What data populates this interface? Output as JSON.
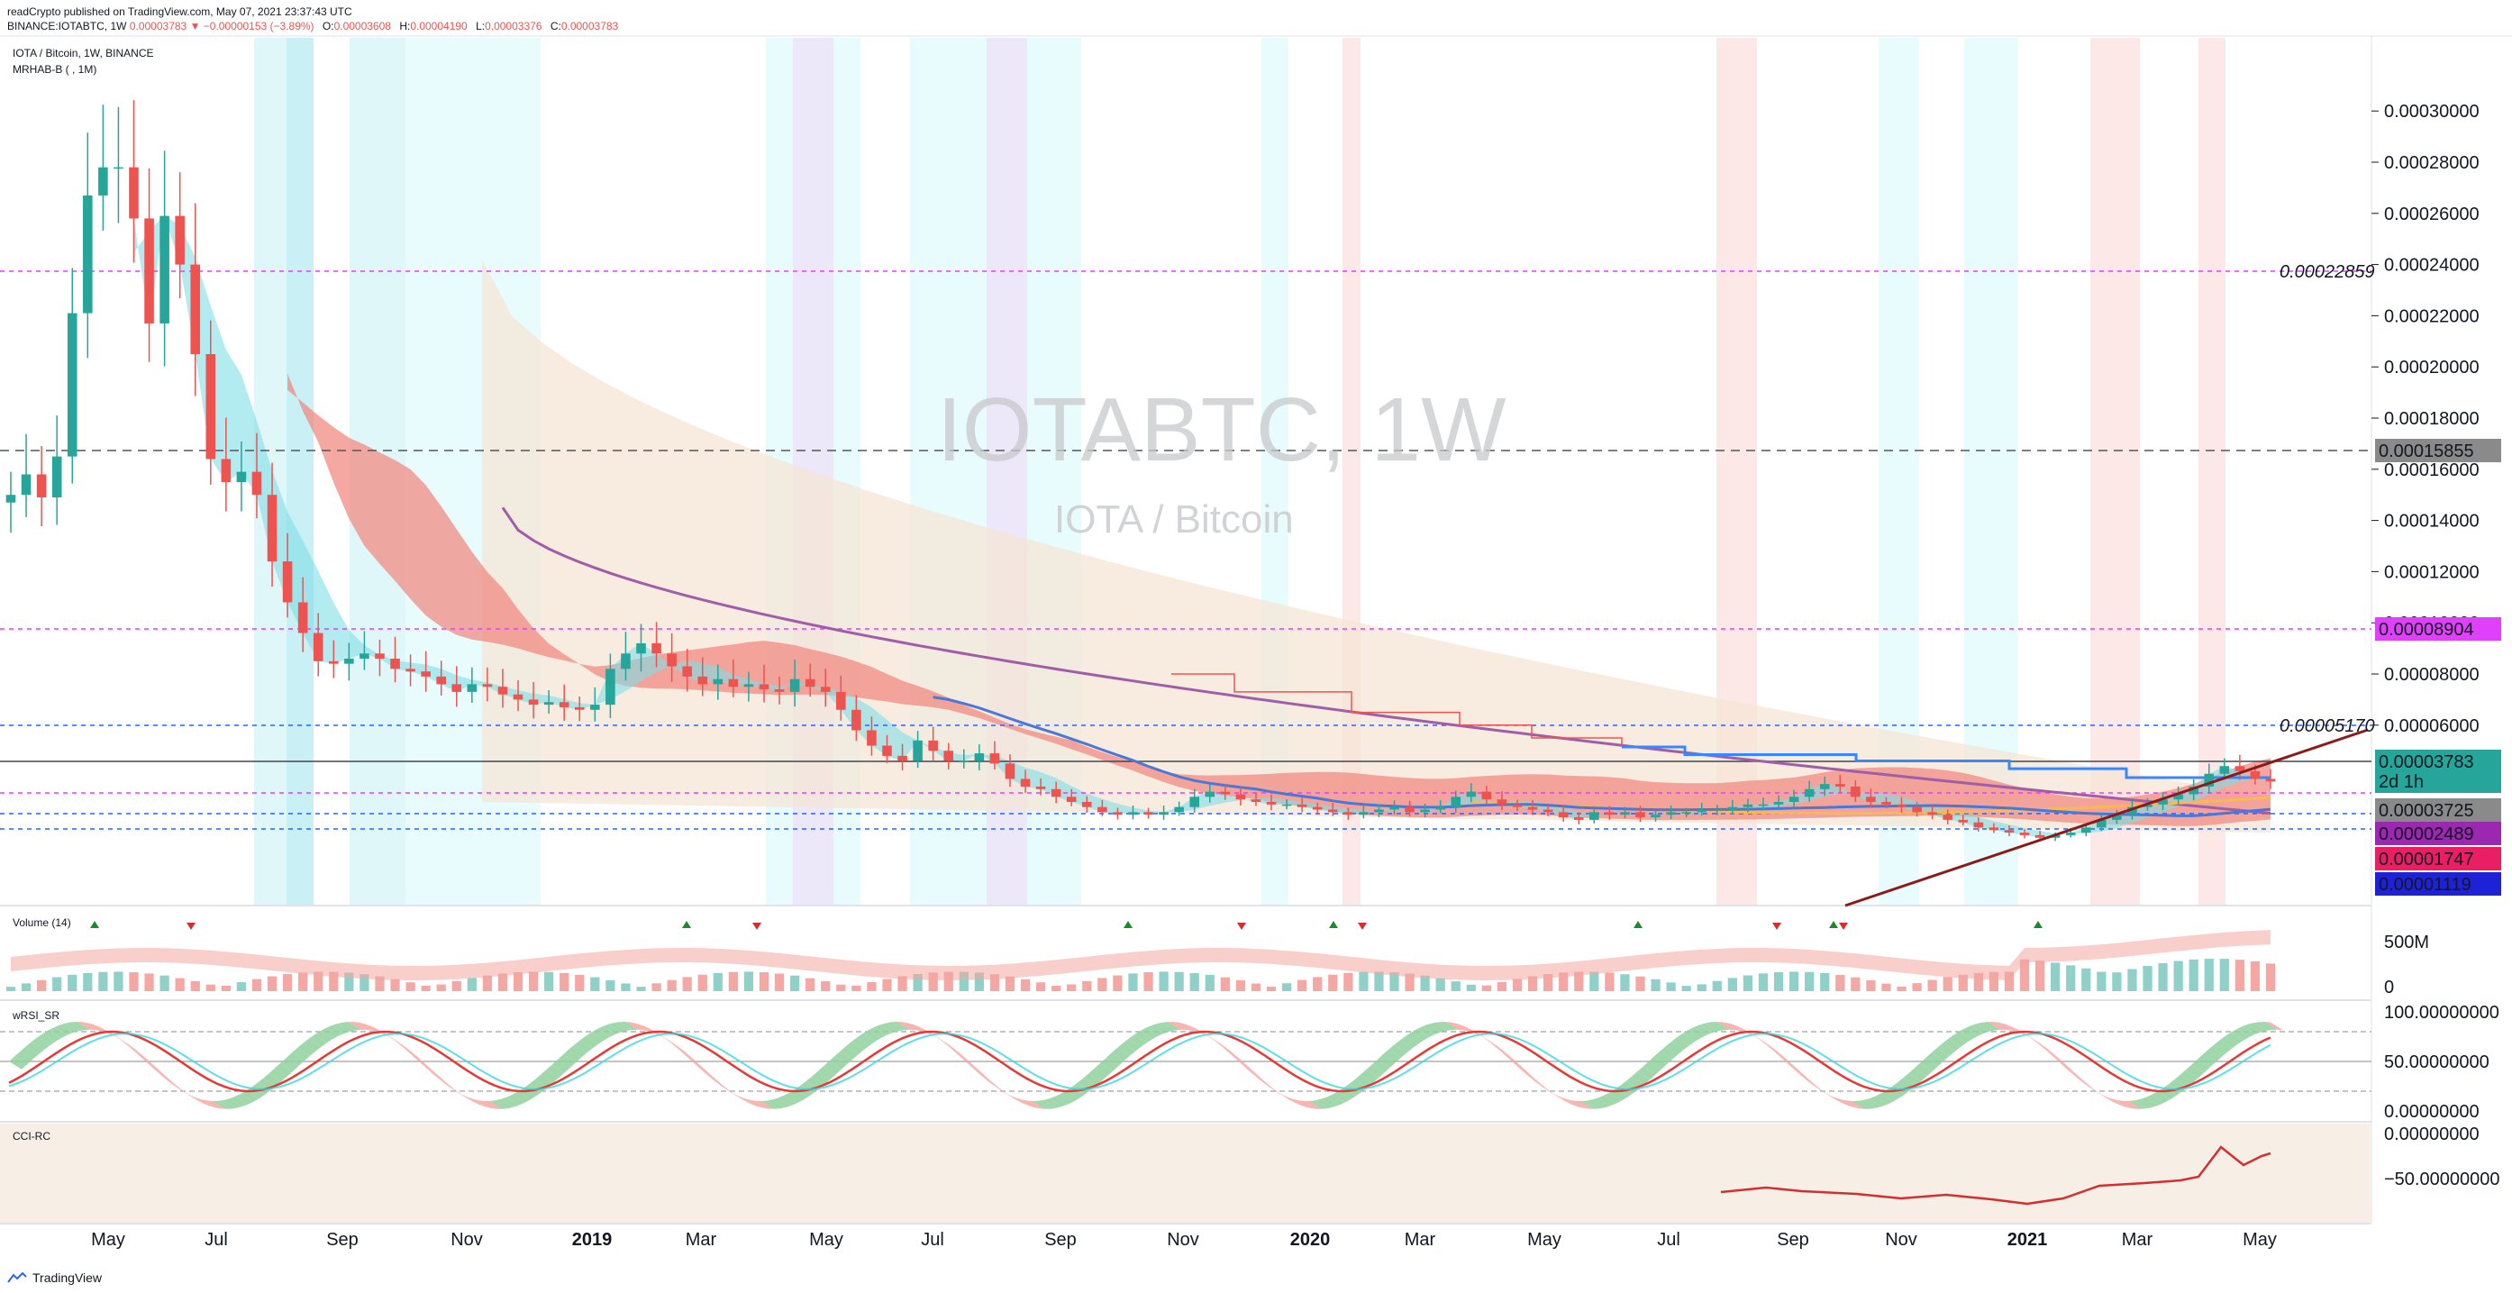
{
  "header": {
    "publisher": "readCrypto published on TradingView.com, May 07, 2021 23:37:43 UTC",
    "symbol_line": "BINANCE:IOTABTC, 1W",
    "last": "0.00003783",
    "change": "▼ −0.00000153 (−3.89%)",
    "o_label": "O:",
    "o": "0.00003608",
    "h_label": "H:",
    "h": "0.00004190",
    "l_label": "L:",
    "l": "0.00003376",
    "c_label": "C:",
    "c": "0.00003783"
  },
  "legend": {
    "title": "IOTA / Bitcoin, 1W, BINANCE",
    "indicator": "MRHAB-B ( , 1M)"
  },
  "watermark": {
    "symbol": "IOTABTC, 1W",
    "name": "IOTA / Bitcoin"
  },
  "panes": {
    "volume": "Volume (14)",
    "wrsi": "wRSI_SR",
    "cci": "CCI-RC"
  },
  "footer": {
    "brand": "TradingView"
  },
  "colors": {
    "up": "#26a69a",
    "down": "#ef5350",
    "bg": "#ffffff",
    "ribbon_red": "#f28b82",
    "cloud": "#f5e6d6",
    "ma_blue": "#3a86ff",
    "ma_purple": "#a05da8",
    "wrsi_green": "#8fd19e",
    "wrsi_red": "#f4a7a3",
    "cyan": "#38d6e0",
    "magenta_dash": "#e040fb",
    "navy_dash": "#2962ff"
  },
  "chart_data": {
    "type": "candlestick",
    "price_ticks": [
      "0.00030000",
      "0.00028000",
      "0.00026000",
      "0.00024000",
      "0.00022000",
      "0.00020000",
      "0.00018000",
      "0.00016000",
      "0.00014000",
      "0.00012000",
      "0.00010000",
      "0.00008000",
      "0.00006000"
    ],
    "x_ticks": [
      "May",
      "Jul",
      "Sep",
      "Nov",
      "2019",
      "Mar",
      "May",
      "Jul",
      "Sep",
      "Nov",
      "2020",
      "Mar",
      "May",
      "Jul",
      "Sep",
      "Nov",
      "2021",
      "Mar",
      "May"
    ],
    "price_labels": [
      {
        "value": "0.00022859",
        "style": "plain"
      },
      {
        "value": "0.00015855",
        "style": "gray"
      },
      {
        "value": "0.00008904",
        "style": "magenta"
      },
      {
        "value": "0.00005170",
        "style": "plain"
      },
      {
        "value": "0.00003783",
        "style": "teal"
      },
      {
        "value": "2d 1h",
        "style": "teal"
      },
      {
        "value": "0.00003725",
        "style": "gray"
      },
      {
        "value": "0.00002489",
        "style": "purple"
      },
      {
        "value": "0.00001747",
        "style": "pink"
      },
      {
        "value": "0.00001119",
        "style": "blue"
      }
    ],
    "volume_ticks": [
      "500M",
      "0"
    ],
    "wrsi_ticks": [
      "100.00000000",
      "50.00000000",
      "0.00000000"
    ],
    "cci_ticks": [
      "0.00000000",
      "−50.00000000"
    ],
    "closes": [
      15.0,
      15.8,
      14.9,
      16.5,
      22.1,
      26.7,
      27.8,
      27.8,
      25.8,
      21.7,
      25.9,
      24.0,
      20.5,
      16.4,
      15.5,
      15.9,
      15.0,
      12.4,
      10.8,
      9.6,
      8.5,
      8.4,
      8.6,
      8.8,
      8.6,
      8.2,
      8.1,
      7.9,
      7.6,
      7.3,
      7.6,
      7.5,
      7.2,
      7.0,
      6.8,
      6.9,
      6.7,
      6.6,
      6.8,
      8.2,
      8.8,
      9.2,
      8.8,
      8.3,
      7.9,
      7.6,
      7.8,
      7.5,
      7.6,
      7.4,
      7.3,
      7.8,
      7.5,
      7.3,
      6.6,
      5.8,
      5.2,
      4.8,
      4.6,
      5.4,
      5.0,
      4.6,
      4.6,
      4.9,
      4.5,
      3.9,
      3.6,
      3.5,
      3.2,
      3.0,
      2.8,
      2.6,
      2.5,
      2.6,
      2.5,
      2.6,
      2.8,
      3.2,
      3.4,
      3.3,
      3.1,
      3.0,
      2.9,
      2.9,
      2.8,
      2.7,
      2.6,
      2.5,
      2.6,
      2.7,
      2.8,
      2.6,
      2.7,
      2.8,
      3.2,
      3.4,
      3.1,
      2.9,
      2.8,
      2.7,
      2.6,
      2.4,
      2.3,
      2.6,
      2.5,
      2.6,
      2.4,
      2.5,
      2.6,
      2.6,
      2.7,
      2.7,
      2.8,
      2.9,
      2.9,
      3.0,
      3.2,
      3.5,
      3.7,
      3.6,
      3.2,
      3.0,
      2.9,
      2.8,
      2.6,
      2.5,
      2.3,
      2.2,
      2.0,
      1.9,
      1.8,
      1.7,
      1.6,
      1.7,
      1.8,
      2.0,
      2.3,
      2.5,
      2.8,
      2.9,
      3.1,
      3.3,
      3.6,
      4.1,
      4.4,
      4.2,
      3.9,
      3.8
    ]
  }
}
